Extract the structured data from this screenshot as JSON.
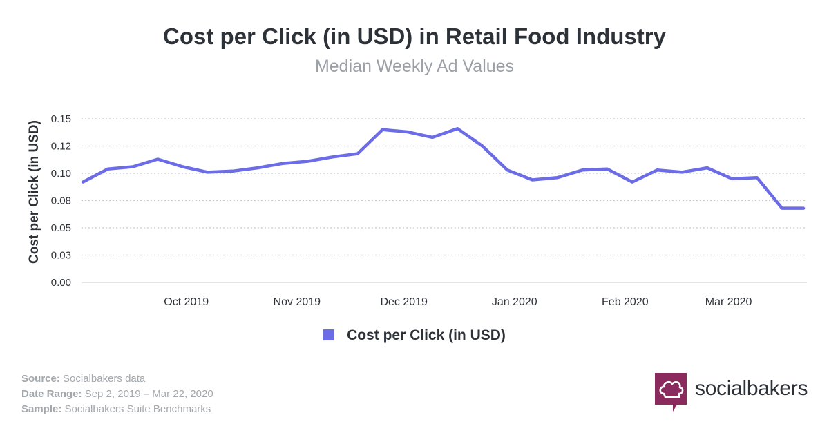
{
  "header": {
    "title": "Cost per Click (in USD) in Retail Food Industry",
    "subtitle": "Median Weekly Ad Values"
  },
  "chart_data": {
    "type": "line",
    "title": "Cost per Click (in USD) in Retail Food Industry",
    "subtitle": "Median Weekly Ad Values",
    "ylabel": "Cost per Click (in USD)",
    "xlabel": "",
    "ylim": [
      0,
      0.15
    ],
    "yticks": [
      "0.00",
      "0.03",
      "0.05",
      "0.08",
      "0.10",
      "0.12",
      "0.15"
    ],
    "x_tick_labels": [
      "Oct 2019",
      "Nov 2019",
      "Dec 2019",
      "Jan 2020",
      "Feb 2020",
      "Mar 2020"
    ],
    "x_tick_dates": [
      "2019-10-01",
      "2019-11-01",
      "2019-12-01",
      "2020-01-01",
      "2020-02-01",
      "2020-03-01"
    ],
    "grid": "horizontal dotted",
    "legend_position": "bottom",
    "series": [
      {
        "name": "Cost per Click (in USD)",
        "color": "#6b6ce6",
        "x": [
          "2019-09-02",
          "2019-09-09",
          "2019-09-16",
          "2019-09-23",
          "2019-09-30",
          "2019-10-07",
          "2019-10-14",
          "2019-10-21",
          "2019-10-28",
          "2019-11-04",
          "2019-11-11",
          "2019-11-18",
          "2019-11-25",
          "2019-12-02",
          "2019-12-09",
          "2019-12-16",
          "2019-12-23",
          "2019-12-30",
          "2020-01-06",
          "2020-01-13",
          "2020-01-20",
          "2020-01-27",
          "2020-02-03",
          "2020-02-10",
          "2020-02-17",
          "2020-02-24",
          "2020-03-02",
          "2020-03-09",
          "2020-03-16",
          "2020-03-22"
        ],
        "values": [
          0.092,
          0.104,
          0.106,
          0.113,
          0.106,
          0.101,
          0.102,
          0.105,
          0.109,
          0.111,
          0.115,
          0.118,
          0.14,
          0.138,
          0.133,
          0.141,
          0.125,
          0.103,
          0.094,
          0.096,
          0.103,
          0.104,
          0.092,
          0.103,
          0.101,
          0.105,
          0.095,
          0.096,
          0.068,
          0.068
        ]
      }
    ]
  },
  "legend": {
    "label": "Cost per Click (in USD)",
    "color": "#6b6ce6"
  },
  "footer": {
    "source_label": "Source:",
    "source_value": " Socialbakers data",
    "range_label": "Date Range:",
    "range_value": " Sep 2, 2019 – Mar 22, 2020",
    "sample_label": "Sample:",
    "sample_value": " Socialbakers Suite Benchmarks"
  },
  "brand": {
    "name": "socialbakers",
    "color": "#8b2a5c",
    "logo_icon": "chef-hat-icon"
  }
}
